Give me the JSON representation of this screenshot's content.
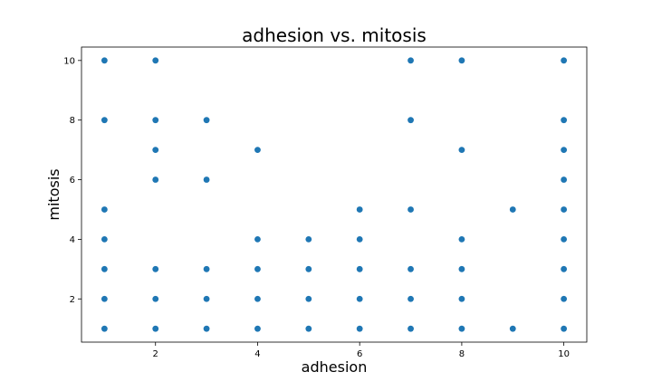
{
  "chart_data": {
    "type": "scatter",
    "title": "adhesion vs. mitosis",
    "xlabel": "adhesion",
    "ylabel": "mitosis",
    "xlim": [
      0.55,
      10.45
    ],
    "ylim": [
      0.55,
      10.45
    ],
    "xticks": [
      2,
      4,
      6,
      8,
      10
    ],
    "yticks": [
      2,
      4,
      6,
      8,
      10
    ],
    "grid": false,
    "color": "#1f77b4",
    "points": [
      [
        1,
        10
      ],
      [
        1,
        8
      ],
      [
        1,
        5
      ],
      [
        1,
        4
      ],
      [
        1,
        3
      ],
      [
        1,
        2
      ],
      [
        1,
        1
      ],
      [
        2,
        10
      ],
      [
        2,
        8
      ],
      [
        2,
        7
      ],
      [
        2,
        6
      ],
      [
        2,
        3
      ],
      [
        2,
        2
      ],
      [
        2,
        1
      ],
      [
        3,
        8
      ],
      [
        3,
        6
      ],
      [
        3,
        3
      ],
      [
        3,
        2
      ],
      [
        3,
        1
      ],
      [
        4,
        7
      ],
      [
        4,
        4
      ],
      [
        4,
        3
      ],
      [
        4,
        2
      ],
      [
        4,
        1
      ],
      [
        5,
        4
      ],
      [
        5,
        3
      ],
      [
        5,
        2
      ],
      [
        5,
        1
      ],
      [
        6,
        5
      ],
      [
        6,
        4
      ],
      [
        6,
        3
      ],
      [
        6,
        2
      ],
      [
        6,
        1
      ],
      [
        7,
        10
      ],
      [
        7,
        8
      ],
      [
        7,
        5
      ],
      [
        7,
        3
      ],
      [
        7,
        2
      ],
      [
        7,
        1
      ],
      [
        8,
        10
      ],
      [
        8,
        7
      ],
      [
        8,
        4
      ],
      [
        8,
        3
      ],
      [
        8,
        2
      ],
      [
        8,
        1
      ],
      [
        9,
        5
      ],
      [
        9,
        1
      ],
      [
        10,
        10
      ],
      [
        10,
        8
      ],
      [
        10,
        7
      ],
      [
        10,
        6
      ],
      [
        10,
        5
      ],
      [
        10,
        4
      ],
      [
        10,
        3
      ],
      [
        10,
        2
      ],
      [
        10,
        1
      ]
    ]
  }
}
